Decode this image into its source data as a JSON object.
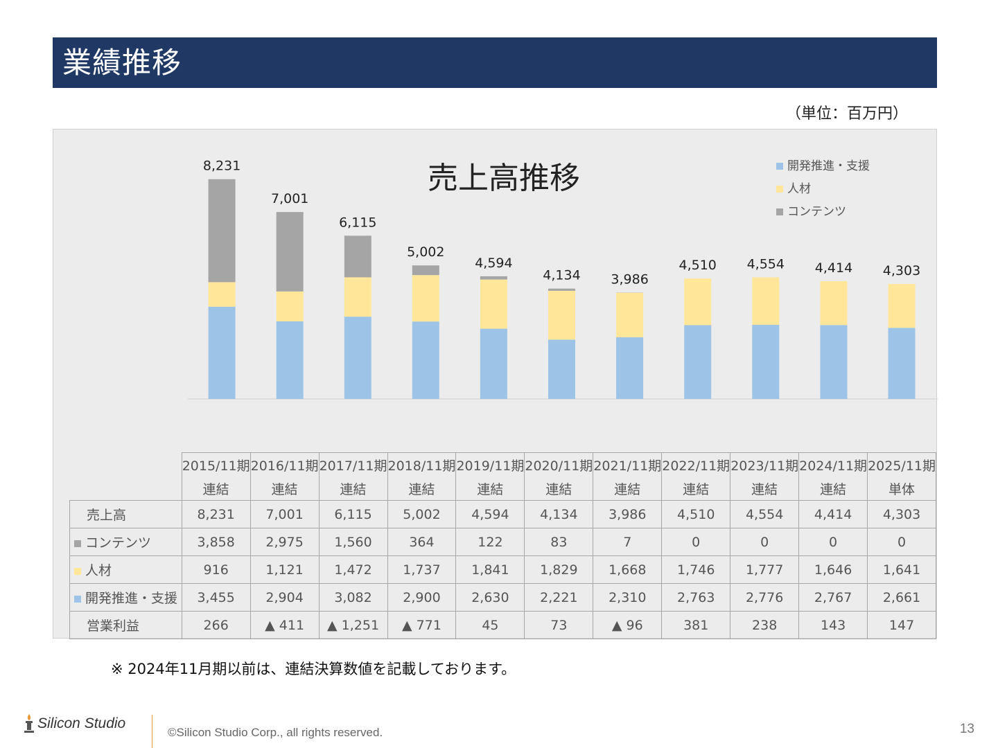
{
  "header": {
    "title": "業績推移",
    "unit": "（単位：百万円）"
  },
  "chart_data": {
    "type": "bar",
    "stacked": true,
    "title": "売上高推移",
    "categories": [
      "2015/11期",
      "2016/11期",
      "2017/11期",
      "2018/11期",
      "2019/11期",
      "2020/11期",
      "2021/11期",
      "2022/11期",
      "2023/11期",
      "2024/11期",
      "2025/11期"
    ],
    "category_subtitles": [
      "連結",
      "連結",
      "連結",
      "連結",
      "連結",
      "連結",
      "連結",
      "連結",
      "連結",
      "連結",
      "単体"
    ],
    "series": [
      {
        "name": "開発推進・支援",
        "color": "#9dc3e6",
        "values": [
          3455,
          2904,
          3082,
          2900,
          2630,
          2221,
          2310,
          2763,
          2776,
          2767,
          2661
        ]
      },
      {
        "name": "人材",
        "color": "#ffe699",
        "values": [
          916,
          1121,
          1472,
          1737,
          1841,
          1829,
          1668,
          1746,
          1777,
          1646,
          1641
        ]
      },
      {
        "name": "コンテンツ",
        "color": "#a5a5a5",
        "values": [
          3858,
          2975,
          1560,
          364,
          122,
          83,
          7,
          0,
          0,
          0,
          0
        ]
      }
    ],
    "totals": [
      8231,
      7001,
      6115,
      5002,
      4594,
      4134,
      3986,
      4510,
      4554,
      4414,
      4303
    ],
    "total_labels": [
      "8,231",
      "7,001",
      "6,115",
      "5,002",
      "4,594",
      "4,134",
      "3,986",
      "4,510",
      "4,554",
      "4,414",
      "4,303"
    ],
    "legend_position": "top-right",
    "ylim": [
      0,
      8300
    ],
    "grid": false
  },
  "table": {
    "rows": [
      {
        "label": "売上高",
        "marker": "",
        "cells": [
          "8,231",
          "7,001",
          "6,115",
          "5,002",
          "4,594",
          "4,134",
          "3,986",
          "4,510",
          "4,554",
          "4,414",
          "4,303"
        ]
      },
      {
        "label": "コンテンツ",
        "marker": "#a5a5a5",
        "cells": [
          "3,858",
          "2,975",
          "1,560",
          "364",
          "122",
          "83",
          "7",
          "0",
          "0",
          "0",
          "0"
        ]
      },
      {
        "label": "人材",
        "marker": "#ffe699",
        "cells": [
          "916",
          "1,121",
          "1,472",
          "1,737",
          "1,841",
          "1,829",
          "1,668",
          "1,746",
          "1,777",
          "1,646",
          "1,641"
        ]
      },
      {
        "label": "開発推進・支援",
        "marker": "#9dc3e6",
        "cells": [
          "3,455",
          "2,904",
          "3,082",
          "2,900",
          "2,630",
          "2,221",
          "2,310",
          "2,763",
          "2,776",
          "2,767",
          "2,661"
        ]
      },
      {
        "label": "営業利益",
        "marker": "",
        "cells": [
          "266",
          "▲ 411",
          "▲ 1,251",
          "▲ 771",
          "45",
          "73",
          "▲ 96",
          "381",
          "238",
          "143",
          "147"
        ]
      }
    ]
  },
  "note": "※ 2024年11月期以前は、連結決算数値を記載しております。",
  "footer": {
    "logo_text": "Silicon Studio",
    "copyright": "©Silicon Studio Corp., all rights reserved.",
    "page_number": "13"
  }
}
